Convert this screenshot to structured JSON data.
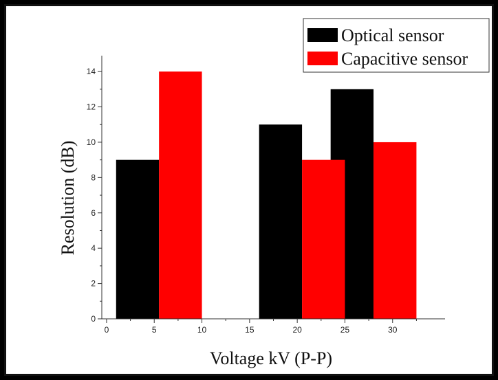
{
  "chart_data": {
    "type": "bar",
    "title": "",
    "xlabel": "Voltage kV (P-P)",
    "ylabel": "Resolution (dB)",
    "xlim": [
      -0.5,
      35.5
    ],
    "ylim": [
      0,
      14.9
    ],
    "x_ticks": [
      0,
      5,
      10,
      15,
      20,
      25,
      30
    ],
    "y_ticks": [
      0,
      2,
      4,
      6,
      8,
      10,
      12,
      14
    ],
    "bar_width": 4.5,
    "grid": false,
    "legend_position": "top-right",
    "series": [
      {
        "name": "Optical sensor",
        "color": "#000000",
        "points": [
          {
            "x": 3.25,
            "y": 9
          },
          {
            "x": 18.25,
            "y": 11
          },
          {
            "x": 25.75,
            "y": 13
          }
        ]
      },
      {
        "name": "Capacitive sensor",
        "color": "#ff0000",
        "points": [
          {
            "x": 7.75,
            "y": 14
          },
          {
            "x": 22.75,
            "y": 9
          },
          {
            "x": 30.25,
            "y": 10
          }
        ]
      }
    ]
  }
}
